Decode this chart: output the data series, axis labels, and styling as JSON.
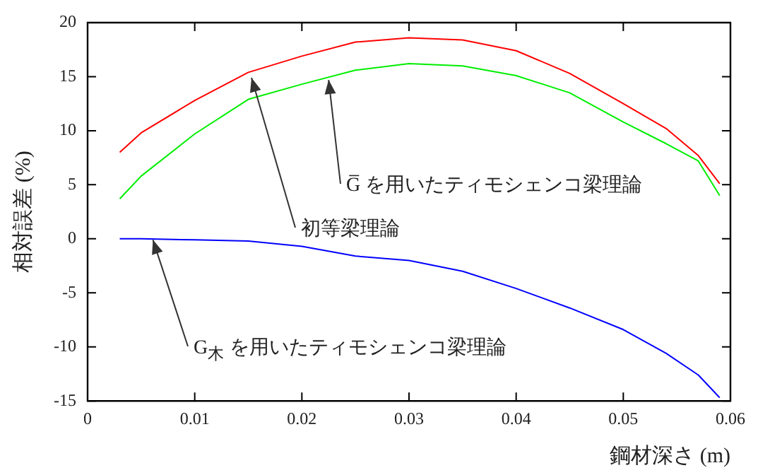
{
  "chart_data": {
    "type": "line",
    "xlabel": "鋼材深さ (m)",
    "ylabel": "相対誤差 (%)",
    "xlim": [
      0,
      0.06
    ],
    "xticks": [
      0,
      0.01,
      0.02,
      0.03,
      0.04,
      0.05,
      0.06
    ],
    "ylim": [
      -15,
      20
    ],
    "yticks": [
      -15,
      -10,
      -5,
      0,
      5,
      10,
      15,
      20
    ],
    "x": [
      0.003,
      0.005,
      0.01,
      0.015,
      0.02,
      0.025,
      0.03,
      0.035,
      0.04,
      0.045,
      0.05,
      0.054,
      0.057,
      0.059
    ],
    "series": [
      {
        "color": "#ff0000",
        "values": [
          8,
          9.8,
          12.8,
          15.4,
          16.9,
          18.2,
          18.6,
          18.4,
          17.4,
          15.3,
          12.5,
          10.2,
          7.7,
          5.1
        ]
      },
      {
        "color": "#00ee00",
        "values": [
          3.7,
          5.8,
          9.7,
          12.9,
          14.3,
          15.6,
          16.2,
          16,
          15.1,
          13.5,
          10.8,
          8.8,
          7.2,
          4
        ]
      },
      {
        "color": "#0000ff",
        "values": [
          0,
          0,
          -0.1,
          -0.2,
          -0.7,
          -1.6,
          -2,
          -3,
          -4.6,
          -6.4,
          -8.4,
          -10.6,
          -12.6,
          -14.7
        ]
      }
    ],
    "annotations": [
      {
        "text": "G̅ を用いたティモシェンコ梁理論",
        "x": 0.0225,
        "y": 14.7
      },
      {
        "text": "初等梁理論",
        "x": 0.0153,
        "y": 14.9
      },
      {
        "text": "G$_{木}$ を用いたティモシェンコ梁理論",
        "x": 0.0061,
        "y": -0.1
      }
    ],
    "grid": false,
    "legend": false,
    "marker": "none",
    "line_style": "solid"
  }
}
